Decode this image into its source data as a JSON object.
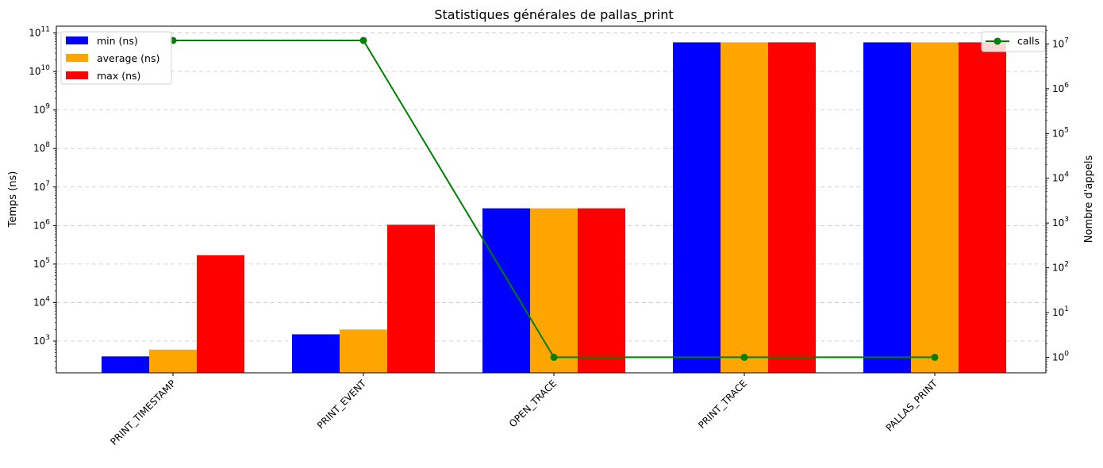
{
  "chart_data": {
    "type": "bar",
    "title": "Statistiques générales de pallas_print",
    "ylabel": "Temps (ns)",
    "y2label": "Nombre d'appels",
    "y_scale": "log",
    "ylim": [
      150,
      150000000000
    ],
    "y2_scale": "log",
    "y2lim": [
      0.45,
      25000000
    ],
    "grid": "horizontal dashed",
    "categories": [
      "PRINT_TIMESTAMP",
      "PRINT_EVENT",
      "OPEN_TRACE",
      "PRINT_TRACE",
      "PALLAS_PRINT"
    ],
    "series": [
      {
        "name": "min (ns)",
        "color": "#0000ff",
        "values": [
          400,
          1500,
          2800000,
          57000000000,
          57000000000
        ]
      },
      {
        "name": "average (ns)",
        "color": "#ffa500",
        "values": [
          600,
          2000,
          2800000,
          57000000000,
          57000000000
        ]
      },
      {
        "name": "max (ns)",
        "color": "#ff0000",
        "values": [
          170000,
          1050000,
          2800000,
          57000000000,
          57000000000
        ]
      }
    ],
    "line_series": {
      "name": "calls",
      "color": "#008000",
      "axis": "right",
      "values": [
        12000000,
        12000000,
        1,
        1,
        1
      ]
    },
    "y_ticks": [
      {
        "base": "10",
        "exp": "3",
        "value": 1000
      },
      {
        "base": "10",
        "exp": "4",
        "value": 10000
      },
      {
        "base": "10",
        "exp": "5",
        "value": 100000
      },
      {
        "base": "10",
        "exp": "6",
        "value": 1000000
      },
      {
        "base": "10",
        "exp": "7",
        "value": 10000000
      },
      {
        "base": "10",
        "exp": "8",
        "value": 100000000
      },
      {
        "base": "10",
        "exp": "9",
        "value": 1000000000
      },
      {
        "base": "10",
        "exp": "10",
        "value": 10000000000
      },
      {
        "base": "10",
        "exp": "11",
        "value": 100000000000
      }
    ],
    "y2_ticks": [
      {
        "base": "10",
        "exp": "0",
        "value": 1
      },
      {
        "base": "10",
        "exp": "1",
        "value": 10
      },
      {
        "base": "10",
        "exp": "2",
        "value": 100
      },
      {
        "base": "10",
        "exp": "3",
        "value": 1000
      },
      {
        "base": "10",
        "exp": "4",
        "value": 10000
      },
      {
        "base": "10",
        "exp": "5",
        "value": 100000
      },
      {
        "base": "10",
        "exp": "6",
        "value": 1000000
      },
      {
        "base": "10",
        "exp": "7",
        "value": 10000000
      }
    ],
    "legend_bars_position": "upper-left",
    "legend_line_position": "upper-right"
  }
}
